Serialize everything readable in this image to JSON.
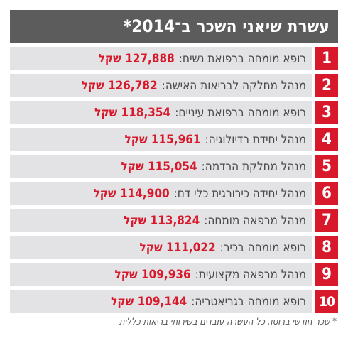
{
  "title": "עשרת שיאני השכר ב־2014*",
  "rows": [
    {
      "rank": "1",
      "role": "רופא מומחה ברפואת נשים:",
      "salary": "127,888 שקל"
    },
    {
      "rank": "2",
      "role": "מנהל מחלקה לבריאות האישה:",
      "salary": "126,782 שקל"
    },
    {
      "rank": "3",
      "role": "רופא מומחה ברפואת עיניים:",
      "salary": "118,354 שקל"
    },
    {
      "rank": "4",
      "role": "מנהל יחידת רדיולוגיה:",
      "salary": "115,961 שקל"
    },
    {
      "rank": "5",
      "role": "מנהל מחלקת הרדמה:",
      "salary": "115,054 שקל"
    },
    {
      "rank": "6",
      "role": "מנהל יחידה כירורגית כלי דם:",
      "salary": "114,900 שקל"
    },
    {
      "rank": "7",
      "role": "מנהל מרפאה מומחה:",
      "salary": "113,824 שקל"
    },
    {
      "rank": "8",
      "role": "רופא מומחה בכיר:",
      "salary": "111,022 שקל"
    },
    {
      "rank": "9",
      "role": "מנהל מרפאה מקצועית:",
      "salary": "109,936 שקל"
    },
    {
      "rank": "10",
      "role": "רופא מומחה בגריאטריה:",
      "salary": "109,144 שקל"
    }
  ],
  "footnote": "* שכר חודשי ברוטו. כל העשרה עובדים בשירותי בריאות כללית",
  "colors": {
    "accent": "#d7192b",
    "header_bg": "#5c5c5c",
    "row_bg": "#e3e3e5"
  }
}
